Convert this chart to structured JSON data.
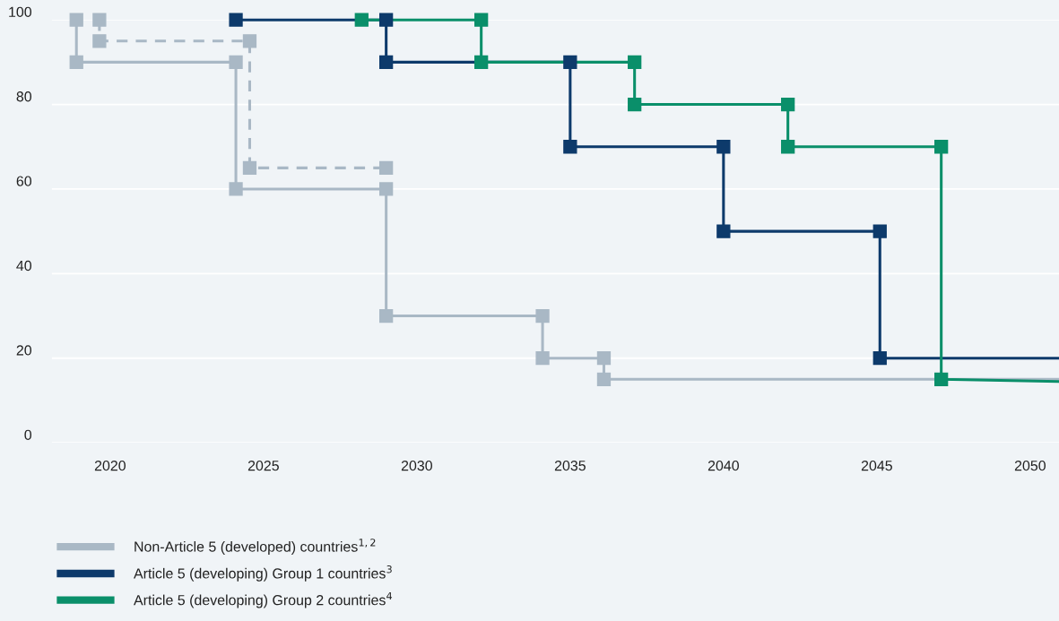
{
  "chart_data": {
    "type": "line",
    "xlim": [
      2018.1,
      2050.94
    ],
    "xticks": [
      2020,
      2025,
      2030,
      2035,
      2040,
      2045,
      2050
    ],
    "ylim": [
      0,
      100
    ],
    "yticks": [
      0,
      20,
      40,
      60,
      80,
      100
    ],
    "grid": "y",
    "legend": "bottom",
    "marker": "square",
    "series": [
      {
        "name": "Non-Article 5 (developed) countries$^{1,2}$",
        "color": "#a9b8c5",
        "line_style": "solid",
        "x": [
          2018.9,
          2018.9,
          2024.1,
          2024.1,
          2029.0,
          2029.0,
          2034.1,
          2034.1,
          2036.1,
          2036.1,
          2050.94
        ],
        "values": [
          100,
          90,
          90,
          60,
          60,
          30,
          30,
          20,
          20,
          15,
          15
        ]
      },
      {
        "color": "#a9b8c5",
        "line_style": "dashed",
        "x": [
          2019.65,
          2019.65,
          2024.55,
          2024.55,
          2029.0
        ],
        "values": [
          100,
          95,
          95,
          65,
          65
        ]
      },
      {
        "name": "Article 5 (developing) Group 1 countries$^{3}$",
        "color": "#0d3a6b",
        "line_style": "solid",
        "x": [
          2024.1,
          2029.0,
          2029.0,
          2035.0,
          2035.0,
          2040.0,
          2040.0,
          2045.1,
          2045.1,
          2050.94
        ],
        "values": [
          100,
          100,
          90,
          90,
          70,
          70,
          50,
          50,
          20,
          20
        ]
      },
      {
        "name": "Article 5 (developing) Group 2 countries$^{4}$",
        "color": "#0a8f6a",
        "line_style": "solid",
        "x": [
          2028.2,
          2032.1,
          2032.1,
          2037.1,
          2037.1,
          2042.1,
          2042.1,
          2047.1,
          2047.1,
          2050.94
        ],
        "values": [
          100,
          100,
          90,
          90,
          80,
          80,
          70,
          70,
          15,
          14.5
        ]
      }
    ]
  }
}
